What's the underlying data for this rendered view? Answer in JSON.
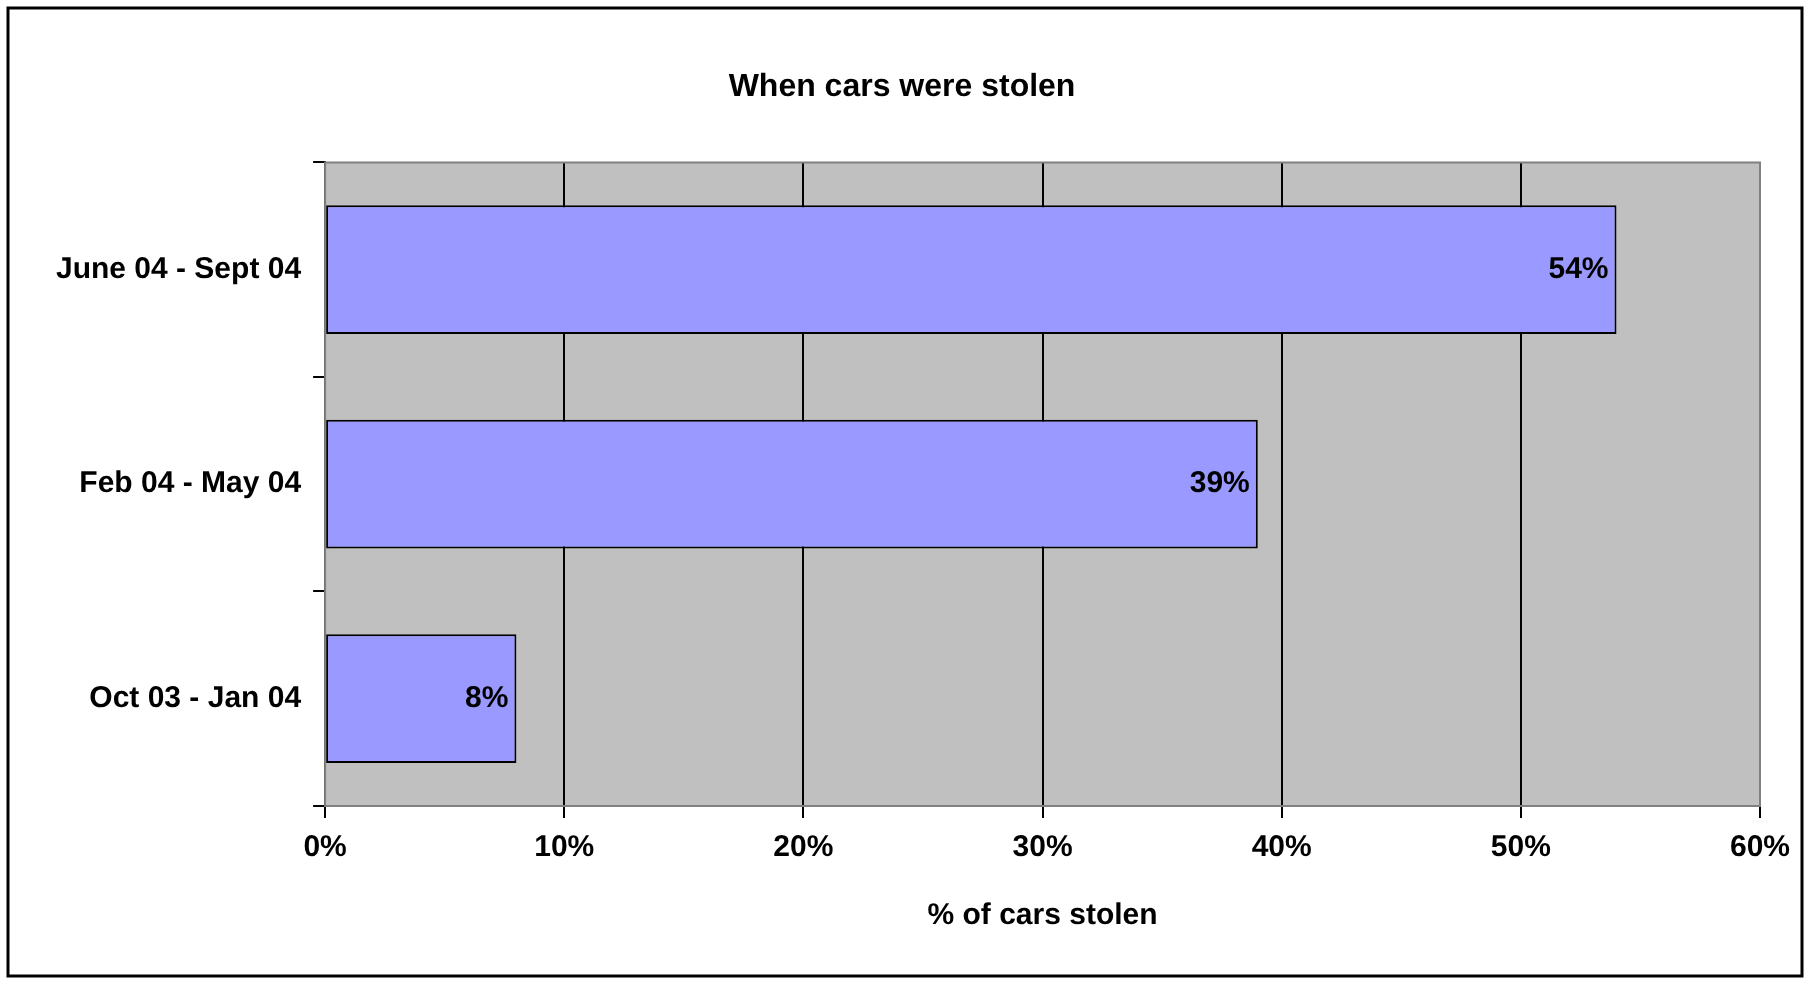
{
  "chart_data": {
    "type": "bar",
    "orientation": "horizontal",
    "title": "When cars were stolen",
    "xlabel": "% of cars stolen",
    "categories": [
      "June 04 - Sept 04",
      "Feb 04 - May 04",
      "Oct 03 - Jan 04"
    ],
    "values": [
      54,
      39,
      8
    ],
    "color": "#9999ff",
    "value_labels": [
      "54%",
      "39%",
      "8%"
    ],
    "xlim": [
      0,
      60
    ],
    "xticks": [
      {
        "value": 0,
        "label": "0%"
      },
      {
        "value": 10,
        "label": "10%"
      },
      {
        "value": 20,
        "label": "20%"
      },
      {
        "value": 30,
        "label": "30%"
      },
      {
        "value": 40,
        "label": "40%"
      },
      {
        "value": 50,
        "label": "50%"
      },
      {
        "value": 60,
        "label": "60%"
      }
    ],
    "grid": "x",
    "legend": false
  }
}
